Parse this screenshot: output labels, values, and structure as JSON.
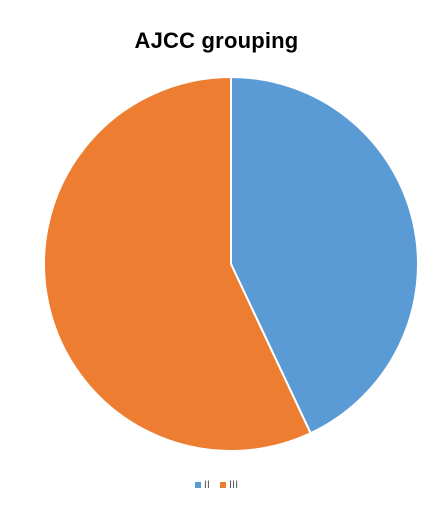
{
  "chart_data": {
    "type": "pie",
    "title": "AJCC grouping",
    "categories": [
      "II",
      "III"
    ],
    "values": [
      43,
      57
    ],
    "colors": [
      "#5B9BD5",
      "#ED7D31"
    ],
    "legend_position": "bottom"
  }
}
